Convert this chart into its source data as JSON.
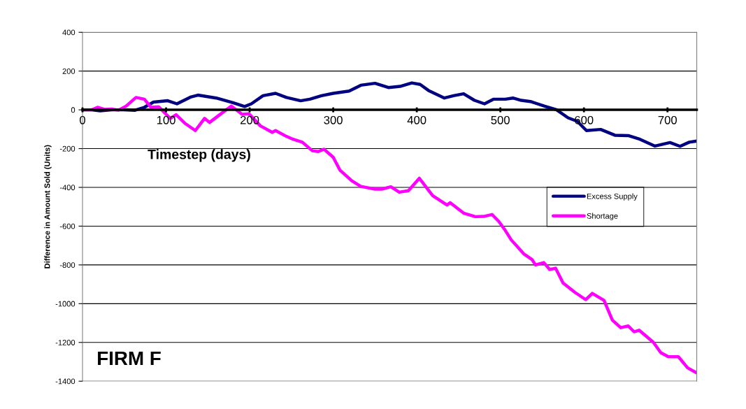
{
  "chart_data": {
    "type": "line",
    "xlabel": "Timestep (days)",
    "ylabel": "Difference in Amount Sold (Units)",
    "annotations": [
      "FIRM F"
    ],
    "xlim": [
      0,
      735
    ],
    "ylim": [
      -1400,
      400
    ],
    "xticks": [
      0,
      100,
      200,
      300,
      400,
      500,
      600,
      700
    ],
    "yticks": [
      -1400,
      -1200,
      -1000,
      -800,
      -600,
      -400,
      -200,
      0,
      200,
      400
    ],
    "grid": "y",
    "legend": "right",
    "marker": "none",
    "line_style": "solid",
    "series": [
      {
        "name": "Excess Supply",
        "color": "#000080",
        "x": [
          0,
          11,
          21,
          35,
          49,
          63,
          74,
          85,
          102,
          113,
          130,
          138,
          160,
          180,
          194,
          202,
          216,
          231,
          244,
          261,
          272,
          286,
          300,
          319,
          333,
          350,
          366,
          380,
          394,
          404,
          414,
          433,
          444,
          456,
          469,
          481,
          492,
          506,
          515,
          525,
          536,
          553,
          567,
          581,
          592,
          603,
          620,
          637,
          653,
          667,
          685,
          703,
          715,
          726,
          735
        ],
        "values": [
          0,
          0,
          -5,
          0,
          0,
          -2,
          13,
          40,
          47,
          31,
          67,
          76,
          61,
          37,
          17,
          31,
          73,
          85,
          64,
          47,
          55,
          73,
          85,
          97,
          127,
          137,
          115,
          121,
          139,
          131,
          100,
          61,
          73,
          83,
          49,
          31,
          55,
          55,
          61,
          49,
          43,
          19,
          1,
          -41,
          -59,
          -107,
          -101,
          -131,
          -133,
          -152,
          -187,
          -169,
          -188,
          -167,
          -161
        ]
      },
      {
        "name": "Shortage",
        "color": "#ff00ff",
        "x": [
          0,
          11,
          18,
          27,
          35,
          43,
          52,
          64,
          74,
          82,
          91,
          105,
          112,
          123,
          135,
          146,
          152,
          163,
          178,
          191,
          199,
          213,
          227,
          231,
          244,
          252,
          263,
          275,
          282,
          289,
          300,
          308,
          322,
          333,
          350,
          358,
          369,
          379,
          390,
          403,
          419,
          436,
          440,
          456,
          470,
          480,
          490,
          498,
          506,
          513,
          528,
          538,
          542,
          552,
          559,
          566,
          575,
          589,
          602,
          610,
          624,
          634,
          644,
          653,
          660,
          666,
          683,
          692,
          701,
          713,
          724,
          734
        ],
        "values": [
          0,
          0,
          13,
          2,
          4,
          -2,
          19,
          64,
          55,
          13,
          16,
          -44,
          -25,
          -71,
          -107,
          -44,
          -65,
          -29,
          19,
          -23,
          -20,
          -83,
          -116,
          -107,
          -137,
          -152,
          -167,
          -211,
          -215,
          -203,
          -245,
          -311,
          -365,
          -395,
          -409,
          -409,
          -397,
          -425,
          -417,
          -353,
          -443,
          -491,
          -479,
          -533,
          -551,
          -550,
          -540,
          -575,
          -623,
          -671,
          -743,
          -773,
          -800,
          -788,
          -824,
          -817,
          -893,
          -941,
          -979,
          -947,
          -983,
          -1085,
          -1124,
          -1115,
          -1145,
          -1137,
          -1199,
          -1253,
          -1274,
          -1274,
          -1331,
          -1355
        ]
      }
    ]
  }
}
